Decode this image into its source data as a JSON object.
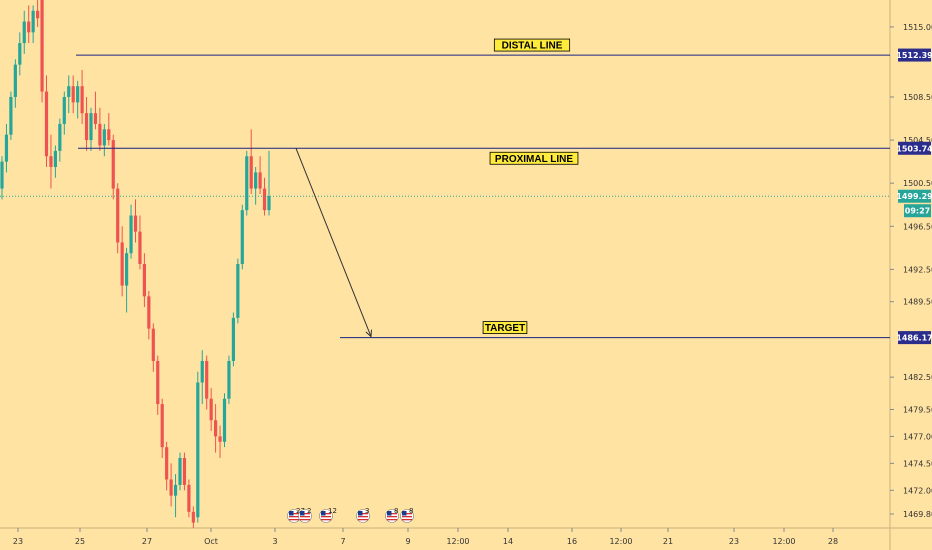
{
  "chart_data": {
    "type": "candlestick",
    "colors": {
      "background": "#ffe3a3",
      "up": "#26a69a",
      "down": "#ef5350",
      "line": "#1a237e",
      "label_bg": "#ffeb3b",
      "price_tag": "#2b2d8c",
      "current_tag": "#26a69a",
      "current_line": "#26a69a",
      "arrow": "#333333"
    },
    "ylim": [
      1468.5,
      1517.5
    ],
    "y_ticks": [
      "1515.00",
      "1508.50",
      "1504.50",
      "1500.50",
      "1496.50",
      "1492.50",
      "1489.50",
      "1482.50",
      "1479.50",
      "1477.00",
      "1474.50",
      "1472.00",
      "1469.80"
    ],
    "x_ticks": [
      "23",
      "25",
      "27",
      "Oct",
      "3",
      "7",
      "9",
      "12:00",
      "14",
      "16",
      "12:00",
      "21",
      "23",
      "12:00",
      "28"
    ],
    "levels": [
      {
        "label": "DISTAL LINE",
        "price": 1512.39,
        "tag": "1512.39"
      },
      {
        "label": "PROXIMAL LINE",
        "price": 1503.74,
        "tag": "1503.74"
      },
      {
        "label": "TARGET",
        "price": 1486.17,
        "tag": "1486.17"
      }
    ],
    "current_price": {
      "value": 1499.29,
      "tag": "1499.29",
      "countdown": "09:27"
    },
    "projection": {
      "from": {
        "date": "Oct 3",
        "price": 1503.74
      },
      "to": {
        "date": "Oct 8",
        "price": 1486.17
      }
    },
    "event_flags": [
      {
        "icon": "us-flag-icon",
        "text": "27"
      },
      {
        "icon": "us-flag-icon",
        "text": "2"
      },
      {
        "icon": "us-flag-icon",
        "text": "12"
      },
      {
        "icon": "us-flag-icon",
        "text": "3"
      },
      {
        "icon": "us-flag-icon",
        "text": "8"
      },
      {
        "icon": "us-flag-icon",
        "text": "8"
      }
    ],
    "candles": [
      [
        1500.0,
        1503.0,
        1499.0,
        1502.5
      ],
      [
        1502.5,
        1506.0,
        1501.5,
        1505.0
      ],
      [
        1505.0,
        1509.0,
        1504.5,
        1508.5
      ],
      [
        1508.5,
        1512.0,
        1507.5,
        1511.5
      ],
      [
        1511.5,
        1514.5,
        1510.5,
        1513.5
      ],
      [
        1513.5,
        1516.5,
        1512.5,
        1515.5
      ],
      [
        1515.5,
        1517.0,
        1513.5,
        1514.5
      ],
      [
        1514.5,
        1517.0,
        1513.5,
        1516.5
      ],
      [
        1516.5,
        1517.5,
        1515.0,
        1515.8
      ],
      [
        1517.5,
        1518.5,
        1508.0,
        1509.0
      ],
      [
        1509.0,
        1510.5,
        1502.0,
        1503.0
      ],
      [
        1503.0,
        1505.0,
        1500.0,
        1502.0
      ],
      [
        1502.0,
        1504.0,
        1501.0,
        1503.5
      ],
      [
        1503.5,
        1506.5,
        1502.5,
        1506.0
      ],
      [
        1506.0,
        1509.0,
        1505.0,
        1508.5
      ],
      [
        1508.5,
        1510.5,
        1507.0,
        1509.5
      ],
      [
        1509.5,
        1510.5,
        1507.0,
        1508.0
      ],
      [
        1508.0,
        1510.0,
        1506.5,
        1509.5
      ],
      [
        1509.5,
        1511.0,
        1506.0,
        1507.0
      ],
      [
        1507.0,
        1508.5,
        1503.5,
        1504.5
      ],
      [
        1504.5,
        1507.5,
        1503.5,
        1507.0
      ],
      [
        1507.0,
        1509.0,
        1505.5,
        1506.0
      ],
      [
        1506.0,
        1507.5,
        1503.5,
        1504.0
      ],
      [
        1504.0,
        1506.0,
        1503.0,
        1505.5
      ],
      [
        1505.5,
        1507.0,
        1504.0,
        1504.5
      ],
      [
        1504.5,
        1505.0,
        1499.0,
        1500.0
      ],
      [
        1500.0,
        1500.5,
        1494.0,
        1495.0
      ],
      [
        1495.0,
        1496.5,
        1490.0,
        1491.0
      ],
      [
        1491.0,
        1494.5,
        1488.5,
        1494.0
      ],
      [
        1494.0,
        1498.5,
        1493.5,
        1497.5
      ],
      [
        1497.5,
        1499.0,
        1495.0,
        1496.0
      ],
      [
        1496.0,
        1497.5,
        1492.5,
        1493.0
      ],
      [
        1493.0,
        1494.0,
        1489.0,
        1490.0
      ],
      [
        1490.0,
        1490.5,
        1486.0,
        1487.0
      ],
      [
        1487.0,
        1487.5,
        1483.0,
        1484.0
      ],
      [
        1484.0,
        1484.5,
        1479.0,
        1480.0
      ],
      [
        1480.0,
        1480.5,
        1475.0,
        1476.0
      ],
      [
        1476.0,
        1476.5,
        1472.0,
        1473.0
      ],
      [
        1473.0,
        1474.5,
        1470.5,
        1471.5
      ],
      [
        1471.5,
        1473.5,
        1469.5,
        1472.5
      ],
      [
        1472.5,
        1475.5,
        1472.0,
        1475.0
      ],
      [
        1475.0,
        1475.5,
        1472.0,
        1472.5
      ],
      [
        1472.5,
        1473.0,
        1469.5,
        1470.0
      ],
      [
        1470.0,
        1470.5,
        1468.5,
        1469.0
      ],
      [
        1469.5,
        1483.0,
        1469.0,
        1482.0
      ],
      [
        1482.0,
        1485.0,
        1480.0,
        1484.0
      ],
      [
        1484.0,
        1484.5,
        1479.5,
        1480.5
      ],
      [
        1480.5,
        1481.5,
        1477.5,
        1478.5
      ],
      [
        1478.5,
        1480.0,
        1475.5,
        1477.0
      ],
      [
        1477.0,
        1478.0,
        1475.0,
        1476.5
      ],
      [
        1476.5,
        1481.0,
        1476.0,
        1480.5
      ],
      [
        1480.5,
        1484.5,
        1480.0,
        1484.0
      ],
      [
        1484.0,
        1488.5,
        1483.5,
        1488.0
      ],
      [
        1488.0,
        1493.5,
        1487.5,
        1493.0
      ],
      [
        1493.0,
        1498.5,
        1492.5,
        1498.0
      ],
      [
        1498.0,
        1503.5,
        1497.5,
        1503.0
      ],
      [
        1503.0,
        1505.5,
        1499.5,
        1500.0
      ],
      [
        1500.0,
        1502.0,
        1498.5,
        1501.5
      ],
      [
        1501.5,
        1503.0,
        1499.5,
        1500.0
      ],
      [
        1500.0,
        1501.0,
        1497.5,
        1498.0
      ],
      [
        1498.0,
        1503.5,
        1497.5,
        1499.3
      ]
    ]
  }
}
